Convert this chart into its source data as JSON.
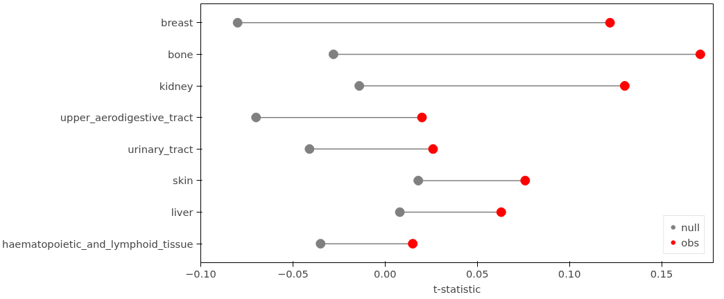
{
  "chart_data": {
    "type": "scatter",
    "orientation": "horizontal",
    "xlabel": "t-statistic",
    "categories": [
      "breast",
      "bone",
      "kidney",
      "upper_aerodigestive_tract",
      "urinary_tract",
      "skin",
      "liver",
      "haematopoietic_and_lymphoid_tissue"
    ],
    "series": [
      {
        "name": "null",
        "color": "#808080",
        "values": [
          -0.08,
          -0.028,
          -0.014,
          -0.07,
          -0.041,
          0.018,
          0.008,
          -0.035
        ]
      },
      {
        "name": "obs",
        "color": "#ff0000",
        "values": [
          0.122,
          0.171,
          0.13,
          0.02,
          0.026,
          0.076,
          0.063,
          0.015
        ]
      }
    ],
    "xlim": [
      -0.1,
      0.178
    ],
    "xticks": [
      {
        "value": -0.1,
        "label": "−0.10"
      },
      {
        "value": -0.05,
        "label": "−0.05"
      },
      {
        "value": 0,
        "label": "0.00"
      },
      {
        "value": 0.05,
        "label": "0.05"
      },
      {
        "value": 0.1,
        "label": "0.10"
      },
      {
        "value": 0.15,
        "label": "0.15"
      }
    ],
    "grid": false,
    "legend": "bottom right",
    "marker": "circle"
  }
}
